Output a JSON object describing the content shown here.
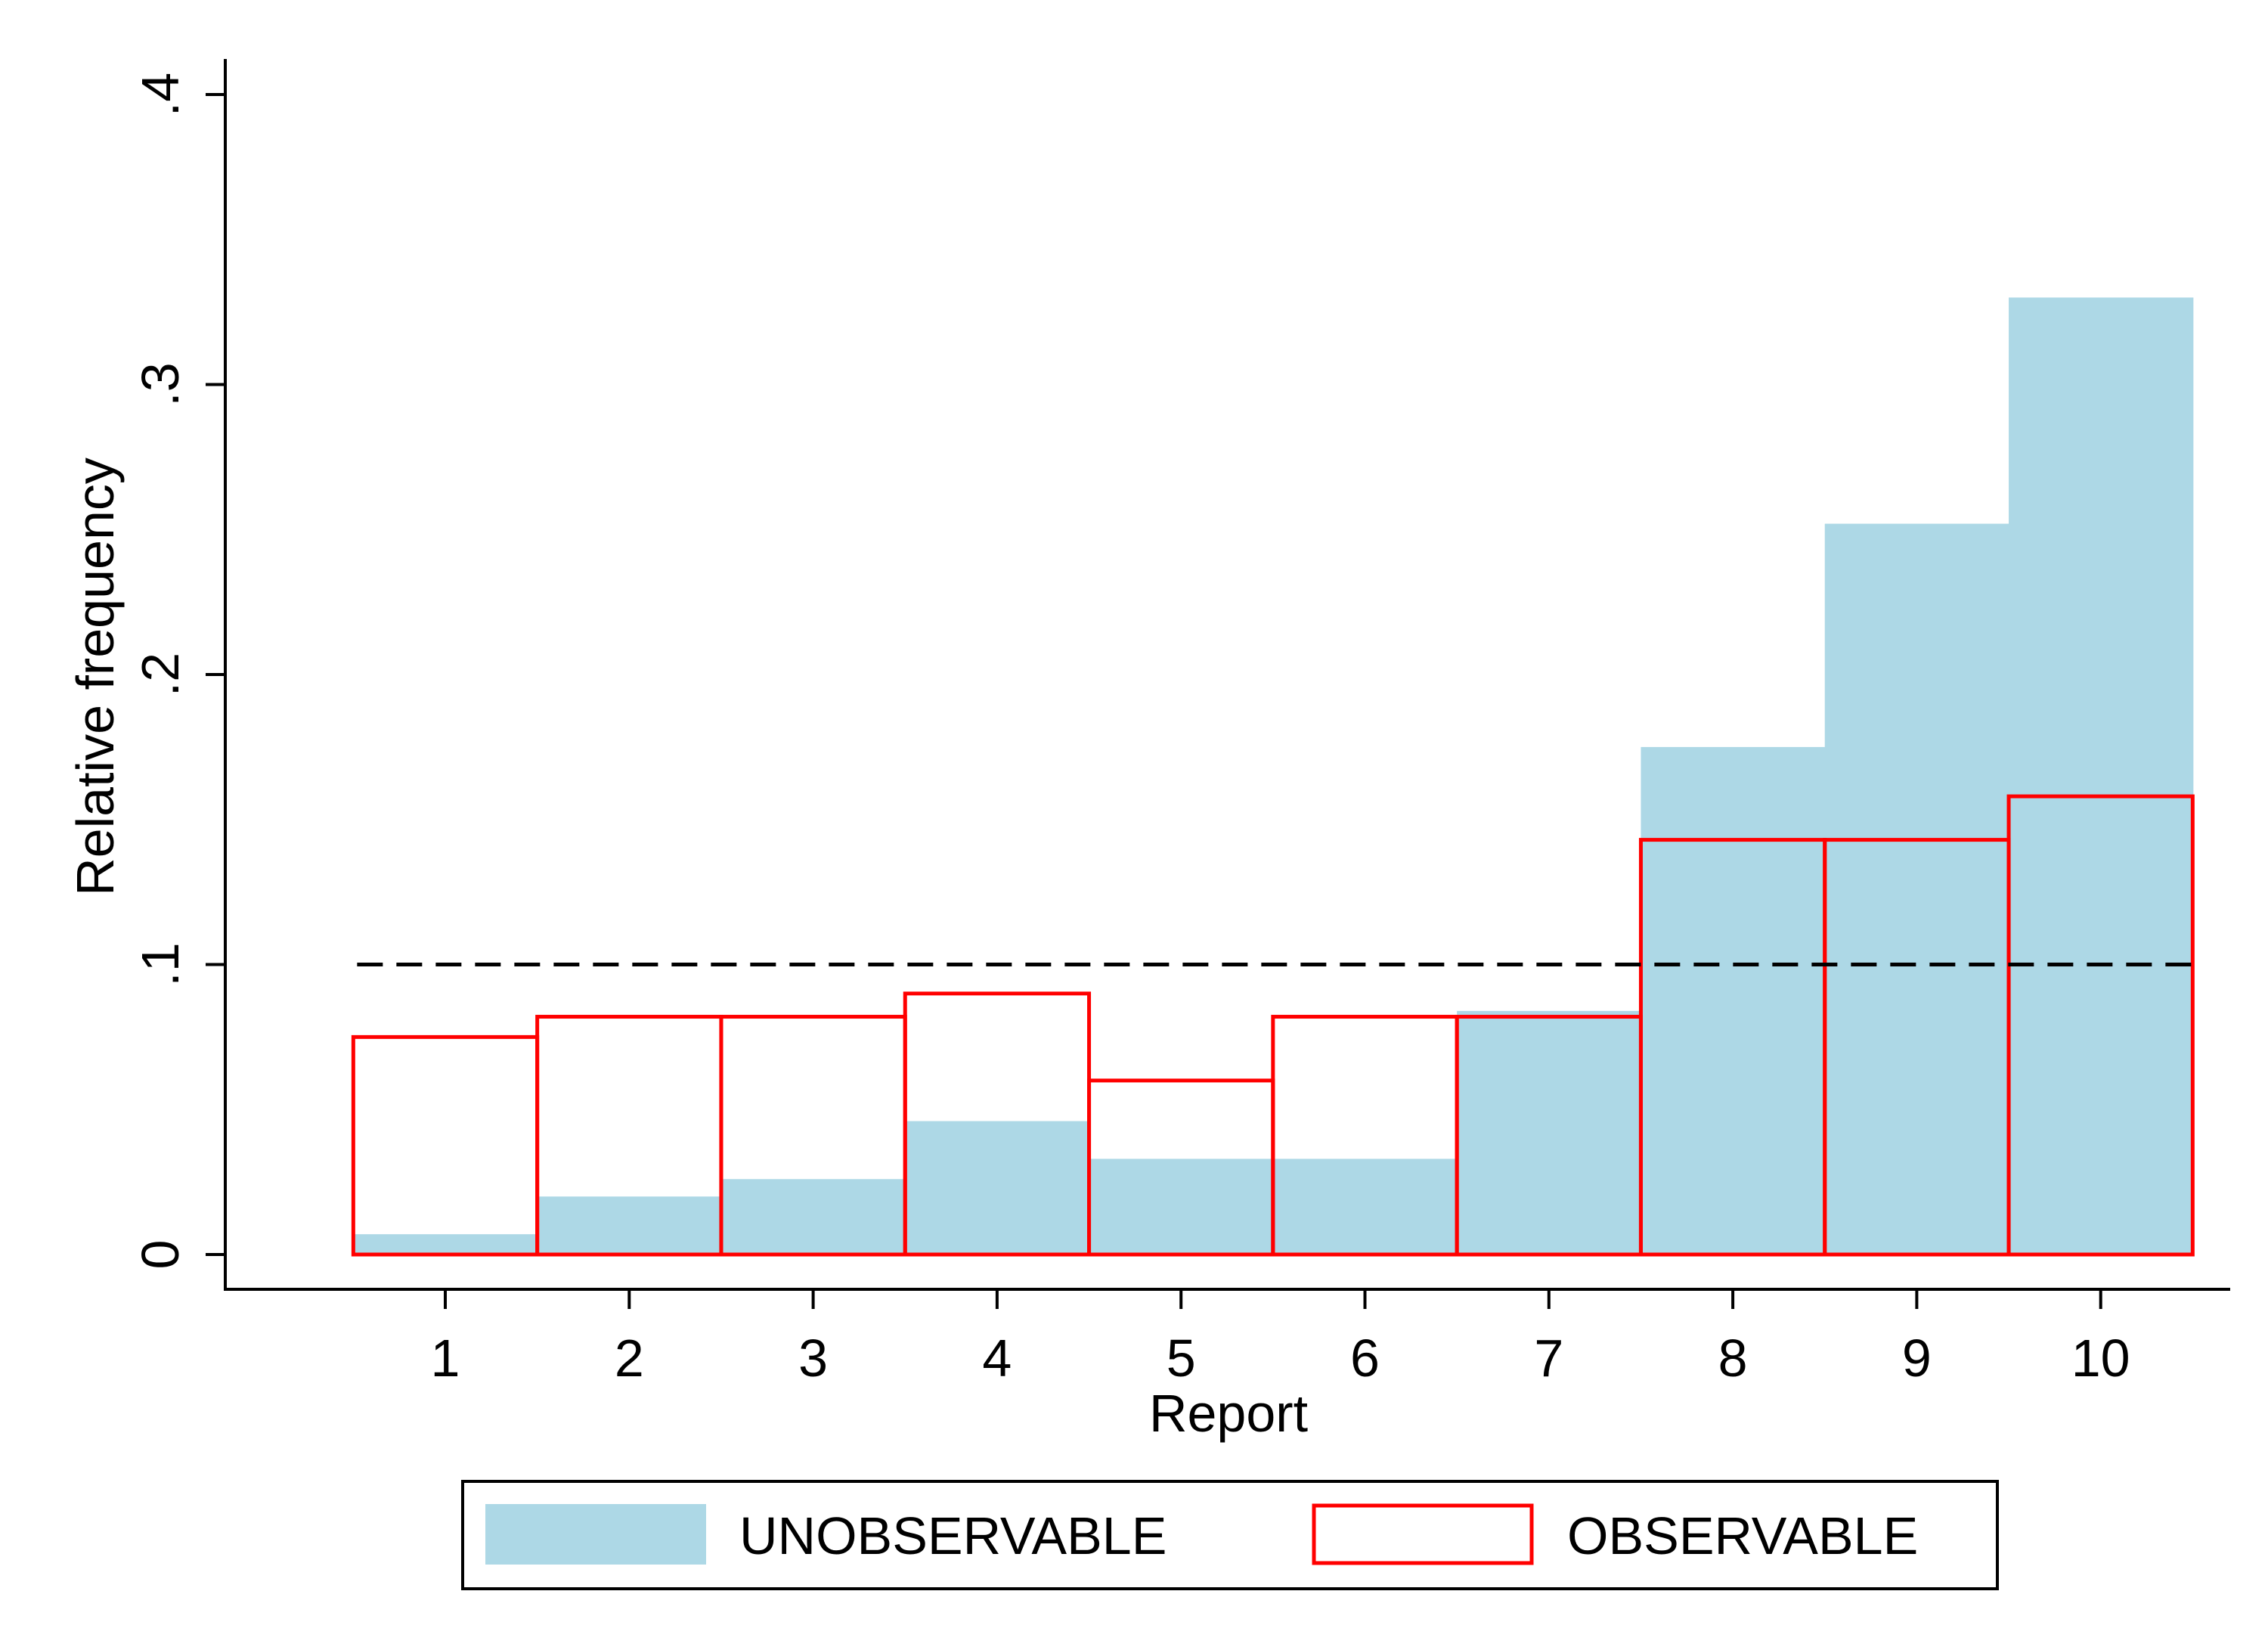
{
  "chart_data": {
    "type": "bar",
    "categories": [
      "1",
      "2",
      "3",
      "4",
      "5",
      "6",
      "7",
      "8",
      "9",
      "10"
    ],
    "series": [
      {
        "name": "UNOBSERVABLE",
        "style": "filled",
        "color": "#add8e6",
        "values": [
          0.007,
          0.02,
          0.026,
          0.046,
          0.033,
          0.033,
          0.084,
          0.175,
          0.252,
          0.33
        ]
      },
      {
        "name": "OBSERVABLE",
        "style": "outline",
        "color": "#ff0000",
        "values": [
          0.075,
          0.082,
          0.082,
          0.09,
          0.06,
          0.082,
          0.082,
          0.143,
          0.143,
          0.158
        ]
      }
    ],
    "xlabel": "Report",
    "ylabel": "Relative frequency",
    "ylim": [
      0,
      0.4
    ],
    "yticks": [
      {
        "value": 0,
        "label": "0"
      },
      {
        "value": 0.1,
        "label": ".1"
      },
      {
        "value": 0.2,
        "label": ".2"
      },
      {
        "value": 0.3,
        "label": ".3"
      },
      {
        "value": 0.4,
        "label": ".4"
      }
    ],
    "reference_line": {
      "y": 0.1,
      "style": "dashed",
      "color": "#000000"
    },
    "grid": false,
    "legend_position": "bottom"
  }
}
